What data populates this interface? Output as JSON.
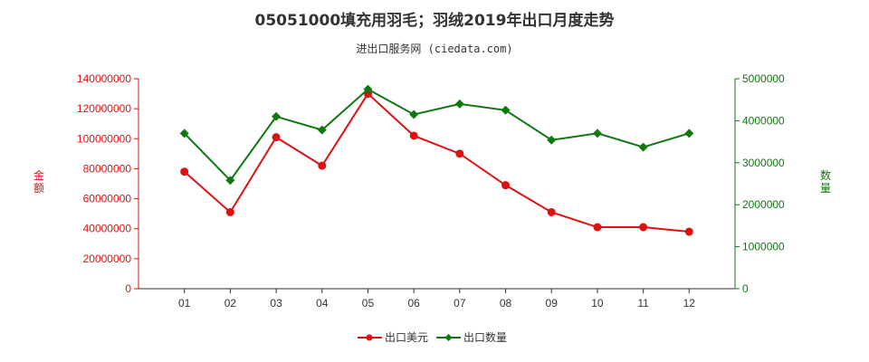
{
  "title": "05051000填充用羽毛；羽绒2019年出口月度走势",
  "subtitle": "进出口服务网 (ciedata.com)",
  "colors": {
    "amount": "#dd1111",
    "quantity": "#117711",
    "axis_left": "#dd1111",
    "axis_right": "#117711"
  },
  "chart_data": {
    "type": "line",
    "categories": [
      "01",
      "02",
      "03",
      "04",
      "05",
      "06",
      "07",
      "08",
      "09",
      "10",
      "11",
      "12"
    ],
    "left_axis": {
      "label": "金额",
      "ylim": [
        0,
        140000000
      ],
      "ticks": [
        "0",
        "20000000",
        "40000000",
        "60000000",
        "80000000",
        "100000000",
        "120000000",
        "140000000"
      ]
    },
    "right_axis": {
      "label": "数量",
      "ylim": [
        0,
        5000000
      ],
      "ticks": [
        "0",
        "1000000",
        "2000000",
        "3000000",
        "4000000",
        "5000000"
      ]
    },
    "series": [
      {
        "name": "出口美元",
        "axis": "left",
        "values": [
          78000000,
          51000000,
          101000000,
          82000000,
          130000000,
          102000000,
          90000000,
          69000000,
          51000000,
          41000000,
          41000000,
          38000000
        ]
      },
      {
        "name": "出口数量",
        "axis": "right",
        "values": [
          3700000,
          2580000,
          4100000,
          3780000,
          4750000,
          4150000,
          4400000,
          4250000,
          3540000,
          3700000,
          3370000,
          3700000
        ]
      }
    ],
    "grid": false,
    "legend": "bottom-center"
  }
}
